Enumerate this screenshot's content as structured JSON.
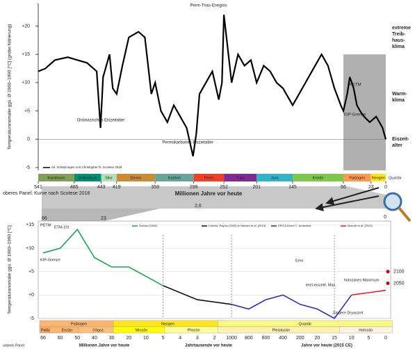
{
  "chart_data": [
    {
      "type": "line",
      "ylabel": "Temperaturanomalie ggü. Ø 1960–1990 [°C] (grobe Näherung)",
      "xlabel": "Millionen Jahre vor heute",
      "xlim": [
        541,
        0
      ],
      "ylim": [
        -5.5,
        24
      ],
      "xticks": [
        541,
        485,
        443,
        419,
        359,
        299,
        252,
        201,
        145,
        66,
        23,
        0
      ],
      "yticks": [
        {
          "value": 20,
          "label": "+20"
        },
        {
          "value": 15,
          "label": "+15"
        },
        {
          "value": 10,
          "label": "+10"
        },
        {
          "value": 5,
          "label": "+5"
        },
        0,
        -5
      ],
      "x": [
        541,
        530,
        515,
        495,
        480,
        465,
        450,
        444,
        440,
        430,
        425,
        419,
        410,
        400,
        385,
        375,
        365,
        359,
        350,
        340,
        330,
        320,
        310,
        300,
        295,
        290,
        280,
        270,
        260,
        255,
        252,
        248,
        240,
        230,
        220,
        210,
        201,
        190,
        180,
        170,
        160,
        150,
        145,
        130,
        115,
        100,
        90,
        80,
        70,
        66,
        60,
        56,
        50,
        45,
        40,
        34,
        25,
        15,
        10,
        5,
        2.6,
        0
      ],
      "series": [
        {
          "name": "rel. Schätzungen von Christopher R. Scotese 2018",
          "color": "#000000",
          "values": [
            12,
            12.5,
            14,
            14.5,
            14,
            13.5,
            12,
            2,
            11,
            15,
            9,
            8,
            13,
            18,
            19,
            18,
            8,
            10,
            5,
            3,
            6,
            4,
            2,
            -3,
            1,
            8,
            10,
            12,
            7,
            10,
            22,
            18,
            10,
            15,
            13,
            14,
            10,
            13,
            12,
            10,
            9,
            7,
            6,
            9,
            12,
            15,
            13,
            9,
            6,
            5,
            8,
            11,
            9,
            6,
            5,
            4,
            3,
            4,
            3,
            2,
            1,
            0
          ]
        }
      ],
      "periods": [
        {
          "name": "Kambrium",
          "color": "#7fa056"
        },
        {
          "name": "Ordovizium",
          "color": "#009270"
        },
        {
          "name": "Silur",
          "color": "#b3e1b6"
        },
        {
          "name": "Devon",
          "color": "#cb8c37"
        },
        {
          "name": "Karbon",
          "color": "#67a599"
        },
        {
          "name": "Perm",
          "color": "#f04028"
        },
        {
          "name": "Trias",
          "color": "#812b92"
        },
        {
          "name": "Jura",
          "color": "#34b2c9"
        },
        {
          "name": "Kreide",
          "color": "#7fc64e"
        },
        {
          "name": "Paläogen",
          "color": "#fd9a52"
        },
        {
          "name": "Neogen",
          "color": "#ffe619"
        },
        {
          "name": "Quartär",
          "color": "#f9f97f"
        }
      ],
      "annotations": [
        "Perm-Trias-Ereignis",
        "Ordovizisches Eiszeitalter",
        "Permokarbones Eiszeitalter",
        "PETM",
        "KIP-Grenze"
      ],
      "climate_zones": [
        {
          "lines": [
            "extreme",
            "Treib-",
            "haus-",
            "klima"
          ],
          "color": "#c00000"
        },
        {
          "lines": [
            "Warm-",
            "klima"
          ],
          "color": "#c09000"
        },
        {
          "lines": [
            "Eiszeit-",
            "alter"
          ],
          "color": "#1a2a9a"
        }
      ]
    },
    {
      "type": "line",
      "ylabel": "Temperaturanomalie ggü. Ø 1960–1990 [°C]",
      "ylim": [
        -5,
        15.8
      ],
      "yticks": [
        {
          "value": 15,
          "label": "+15"
        },
        {
          "value": 10,
          "label": "+10"
        },
        {
          "value": 5,
          "label": "+5"
        },
        {
          "value": 0,
          "label": "+0"
        },
        -5
      ],
      "categories": [
        "66",
        "60",
        "50",
        "40",
        "30",
        "20",
        "10",
        "5",
        "4",
        "3",
        "2",
        "1000",
        "800",
        "600",
        "400",
        "200",
        "20",
        "15",
        "10",
        "5",
        "0"
      ],
      "xlabels": [
        "Millionen Jahre vor heute",
        "Jahrtausende vor heute",
        "Jahre vor heute (2015 CE)"
      ],
      "series": [
        {
          "name": "Zachos (2008)",
          "color": "#1aa64a",
          "values": [
            9,
            10,
            14,
            8,
            6,
            6,
            4,
            2,
            null,
            null,
            null,
            null,
            null,
            null,
            null,
            null,
            null,
            null,
            null,
            null,
            null
          ]
        },
        {
          "name": "Lisiecki, Raymo (2005) in Hansen et al. (2013)",
          "color": "#111111",
          "values": [
            null,
            null,
            null,
            null,
            null,
            null,
            null,
            2,
            0.5,
            -1,
            -1.5,
            -2,
            null,
            null,
            null,
            null,
            null,
            null,
            null,
            null,
            null
          ]
        },
        {
          "name": "EPICA Dome C, Antarctica",
          "color": "#2a2ad0",
          "values": [
            null,
            null,
            null,
            null,
            null,
            null,
            null,
            null,
            null,
            null,
            null,
            -2,
            -3,
            -1,
            0,
            -2,
            -3,
            -5,
            0,
            null,
            null
          ]
        },
        {
          "name": "Marcott et al. (2013)",
          "color": "#e02020",
          "values": [
            null,
            null,
            null,
            null,
            null,
            null,
            null,
            null,
            null,
            null,
            null,
            null,
            null,
            null,
            null,
            null,
            null,
            null,
            0,
            0.5,
            1
          ]
        }
      ],
      "projections": [
        {
          "label": "2100",
          "value": 5
        },
        {
          "label": "2050",
          "value": 2.5
        }
      ],
      "annotations": [
        "PETM",
        "ETM-2/3",
        "KIP-Grenze",
        "Eem",
        "letzt-eiszeitl. Max.",
        "Jüngere Dryaszeit",
        "holozänes Maximum"
      ],
      "periods": [
        "Paläogen",
        "Neogen",
        "Quartär"
      ],
      "epochs": [
        "Paläoz.",
        "Eozän",
        "Oligoz.",
        "Miozän",
        "Pliozän",
        "Pleistozän",
        "Holozän"
      ],
      "panel_note": "unteres Panel"
    }
  ],
  "connector": {
    "note": "oberes Panel: Kurve nach Scotese 2018",
    "ticks": [
      "66",
      "23",
      "2,6",
      "0"
    ]
  }
}
